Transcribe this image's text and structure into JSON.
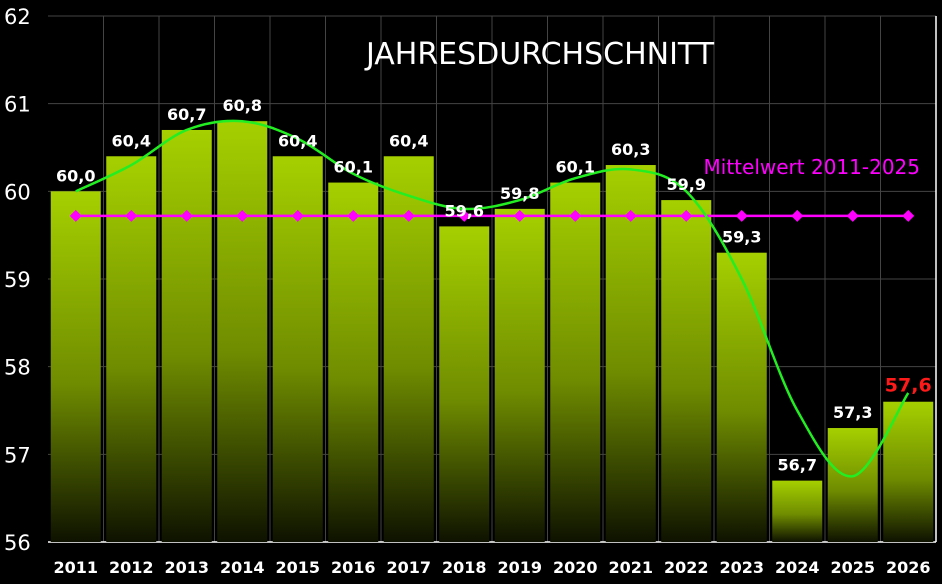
{
  "chart_data": {
    "type": "bar",
    "title": "JAHRESDURCHSCHNITT",
    "xlabel": "",
    "ylabel": "",
    "ylim": [
      56,
      62
    ],
    "yticks": [
      "56",
      "57",
      "58",
      "59",
      "60",
      "61",
      "62"
    ],
    "categories": [
      "2011",
      "2012",
      "2013",
      "2014",
      "2015",
      "2016",
      "2017",
      "2018",
      "2019",
      "2020",
      "2021",
      "2022",
      "2023",
      "2024",
      "2025",
      "2026"
    ],
    "values": [
      60.0,
      60.4,
      60.7,
      60.8,
      60.4,
      60.1,
      60.4,
      59.6,
      59.8,
      60.1,
      60.3,
      59.9,
      59.3,
      56.7,
      57.3,
      57.6
    ],
    "labels": [
      "60,0",
      "60,4",
      "60,7",
      "60,8",
      "60,4",
      "60,1",
      "60,4",
      "59,6",
      "59,8",
      "60,1",
      "60,3",
      "59,9",
      "59,3",
      "56,7",
      "57,3",
      "57,6"
    ],
    "highlight_index": 15,
    "mean": {
      "name": "Mittelwert 2011-2025",
      "value": 59.72
    },
    "trend": [
      60.0,
      60.3,
      60.7,
      60.8,
      60.6,
      60.2,
      59.95,
      59.8,
      59.9,
      60.15,
      60.25,
      60.0,
      59.0,
      57.5,
      56.75,
      57.7
    ],
    "grid": true,
    "legend": "top-right",
    "colors": {
      "bar_top": "#a6d000",
      "bar_bottom": "#101400",
      "mean": "#ff00ff",
      "trend": "#22ee22",
      "highlight_label": "#ff1a1a",
      "label": "#ffffff"
    }
  }
}
